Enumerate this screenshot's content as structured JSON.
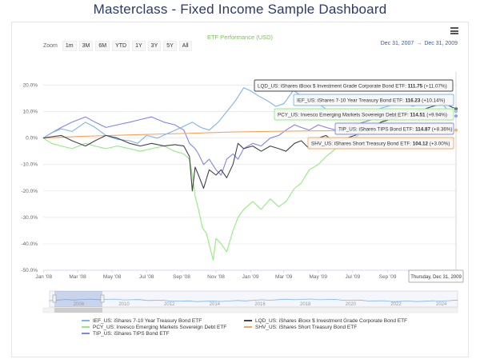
{
  "title": "Masterclass - Fixed Income Sample Dashboard",
  "zoom": {
    "label": "Zoom",
    "buttons": [
      "1m",
      "3M",
      "6M",
      "YTD",
      "1Y",
      "3Y",
      "5Y",
      "All"
    ]
  },
  "range": {
    "from": "Dec 31, 2007",
    "arrow": "→",
    "to": "Dec 31, 2009"
  },
  "chart_data": {
    "type": "line",
    "title": "ETF Performance (USD)",
    "x_tick_labels": [
      "Jan '08",
      "Mar '08",
      "May '08",
      "Jul '08",
      "Sep '08",
      "Nov '08",
      "Jan '09",
      "Mar '09",
      "May '09",
      "Jul '09",
      "Sep '09"
    ],
    "y_tick_labels": [
      "20.0%",
      "10.0%",
      "0.0%",
      "-10.0%",
      "-20.0%",
      "-30.0%",
      "-40.0%",
      "-50.0%"
    ],
    "ylim": [
      -50,
      25
    ],
    "xlim": [
      "2007-12-31",
      "2009-12-31"
    ],
    "grid": true,
    "legend_position": "bottom",
    "series": [
      {
        "name": "IEF_US: iShares 7-10 Year Treasury Bond ETF",
        "color": "#7cb5ec",
        "points": [
          [
            "2007-12-31",
            0
          ],
          [
            "2008-01-15",
            2
          ],
          [
            "2008-02-01",
            3.5
          ],
          [
            "2008-02-20",
            2.5
          ],
          [
            "2008-03-15",
            6
          ],
          [
            "2008-04-01",
            4
          ],
          [
            "2008-04-20",
            1
          ],
          [
            "2008-05-10",
            -0.5
          ],
          [
            "2008-06-01",
            -1
          ],
          [
            "2008-06-15",
            -2
          ],
          [
            "2008-07-01",
            1
          ],
          [
            "2008-07-20",
            0
          ],
          [
            "2008-08-10",
            2
          ],
          [
            "2008-09-01",
            4
          ],
          [
            "2008-09-20",
            6
          ],
          [
            "2008-10-05",
            4
          ],
          [
            "2008-10-20",
            3
          ],
          [
            "2008-11-05",
            6
          ],
          [
            "2008-11-20",
            10
          ],
          [
            "2008-12-05",
            14
          ],
          [
            "2008-12-20",
            19
          ],
          [
            "2008-12-31",
            18
          ],
          [
            "2009-01-15",
            16
          ],
          [
            "2009-02-01",
            14
          ],
          [
            "2009-02-15",
            12
          ],
          [
            "2009-03-01",
            13
          ],
          [
            "2009-03-18",
            18
          ],
          [
            "2009-04-01",
            16
          ],
          [
            "2009-04-15",
            14
          ],
          [
            "2009-05-01",
            13
          ],
          [
            "2009-05-15",
            11
          ],
          [
            "2009-06-01",
            8
          ],
          [
            "2009-06-15",
            9
          ],
          [
            "2009-07-01",
            10
          ],
          [
            "2009-07-15",
            8
          ],
          [
            "2009-08-01",
            9
          ],
          [
            "2009-08-15",
            11
          ],
          [
            "2009-09-01",
            12
          ],
          [
            "2009-09-15",
            13
          ],
          [
            "2009-10-01",
            14
          ],
          [
            "2009-10-15",
            12
          ],
          [
            "2009-11-01",
            13
          ],
          [
            "2009-11-15",
            14
          ],
          [
            "2009-12-01",
            14
          ],
          [
            "2009-12-15",
            11
          ],
          [
            "2009-12-31",
            10.14
          ]
        ]
      },
      {
        "name": "LQD_US: iShares iBoxx $ Investment Grade Corporate Bond ETF",
        "color": "#434348",
        "points": [
          [
            "2007-12-31",
            0
          ],
          [
            "2008-01-15",
            0.5
          ],
          [
            "2008-02-01",
            1
          ],
          [
            "2008-02-20",
            -1
          ],
          [
            "2008-03-15",
            -3
          ],
          [
            "2008-04-01",
            -1
          ],
          [
            "2008-04-20",
            1
          ],
          [
            "2008-05-10",
            0
          ],
          [
            "2008-06-01",
            -2
          ],
          [
            "2008-06-20",
            -3
          ],
          [
            "2008-07-10",
            -2
          ],
          [
            "2008-08-01",
            -3
          ],
          [
            "2008-08-20",
            -2.5
          ],
          [
            "2008-09-05",
            -3
          ],
          [
            "2008-09-15",
            -7
          ],
          [
            "2008-09-20",
            -20
          ],
          [
            "2008-09-25",
            -11
          ],
          [
            "2008-10-01",
            -14
          ],
          [
            "2008-10-10",
            -19
          ],
          [
            "2008-10-20",
            -12
          ],
          [
            "2008-11-01",
            -14
          ],
          [
            "2008-11-10",
            -12
          ],
          [
            "2008-11-20",
            -15
          ],
          [
            "2008-12-01",
            -10
          ],
          [
            "2008-12-10",
            -2
          ],
          [
            "2008-12-20",
            -4
          ],
          [
            "2009-01-05",
            -3
          ],
          [
            "2009-01-20",
            -5
          ],
          [
            "2009-02-05",
            -3
          ],
          [
            "2009-02-20",
            -4
          ],
          [
            "2009-03-05",
            -5
          ],
          [
            "2009-03-20",
            -2
          ],
          [
            "2009-04-01",
            -1
          ],
          [
            "2009-04-15",
            -4
          ],
          [
            "2009-05-01",
            0
          ],
          [
            "2009-05-15",
            1
          ],
          [
            "2009-06-01",
            -2
          ],
          [
            "2009-06-20",
            0
          ],
          [
            "2009-07-05",
            1
          ],
          [
            "2009-07-20",
            3
          ],
          [
            "2009-08-05",
            4
          ],
          [
            "2009-08-20",
            6
          ],
          [
            "2009-09-05",
            7
          ],
          [
            "2009-09-20",
            8
          ],
          [
            "2009-10-05",
            9
          ],
          [
            "2009-10-20",
            10
          ],
          [
            "2009-11-05",
            11
          ],
          [
            "2009-11-20",
            12
          ],
          [
            "2009-12-10",
            13
          ],
          [
            "2009-12-31",
            11.07
          ]
        ]
      },
      {
        "name": "PCY_US: Invesco Emerging Markets Sovereign Debt ETF",
        "color": "#90ed7d",
        "points": [
          [
            "2007-12-31",
            0
          ],
          [
            "2008-01-15",
            -2
          ],
          [
            "2008-02-01",
            -3
          ],
          [
            "2008-02-20",
            -4
          ],
          [
            "2008-03-15",
            -2
          ],
          [
            "2008-04-01",
            -3
          ],
          [
            "2008-04-20",
            -4
          ],
          [
            "2008-05-10",
            -3
          ],
          [
            "2008-06-01",
            -4
          ],
          [
            "2008-06-20",
            -5
          ],
          [
            "2008-07-10",
            -4
          ],
          [
            "2008-08-01",
            -3
          ],
          [
            "2008-08-20",
            -5
          ],
          [
            "2008-09-05",
            -6
          ],
          [
            "2008-09-15",
            -8
          ],
          [
            "2008-09-20",
            -14
          ],
          [
            "2008-09-25",
            -22
          ],
          [
            "2008-10-01",
            -27
          ],
          [
            "2008-10-08",
            -34
          ],
          [
            "2008-10-15",
            -36
          ],
          [
            "2008-10-22",
            -42
          ],
          [
            "2008-10-27",
            -46
          ],
          [
            "2008-11-01",
            -38
          ],
          [
            "2008-11-10",
            -40
          ],
          [
            "2008-11-20",
            -43
          ],
          [
            "2008-12-01",
            -35
          ],
          [
            "2008-12-10",
            -30
          ],
          [
            "2008-12-20",
            -27
          ],
          [
            "2009-01-05",
            -24
          ],
          [
            "2009-01-20",
            -27
          ],
          [
            "2009-02-05",
            -23
          ],
          [
            "2009-02-20",
            -26
          ],
          [
            "2009-03-05",
            -24
          ],
          [
            "2009-03-20",
            -19
          ],
          [
            "2009-04-01",
            -17
          ],
          [
            "2009-04-15",
            -12
          ],
          [
            "2009-05-01",
            -10
          ],
          [
            "2009-05-15",
            -7
          ],
          [
            "2009-06-01",
            -4
          ],
          [
            "2009-06-20",
            -3
          ],
          [
            "2009-07-05",
            0
          ],
          [
            "2009-07-20",
            3
          ],
          [
            "2009-08-05",
            5
          ],
          [
            "2009-08-20",
            6
          ],
          [
            "2009-09-05",
            8
          ],
          [
            "2009-09-20",
            9
          ],
          [
            "2009-10-05",
            10
          ],
          [
            "2009-10-20",
            9
          ],
          [
            "2009-11-05",
            11
          ],
          [
            "2009-11-20",
            10
          ],
          [
            "2009-12-10",
            11
          ],
          [
            "2009-12-31",
            9.94
          ]
        ]
      },
      {
        "name": "SHV_US: iShares Short Treasury Bond ETF",
        "color": "#f7a35c",
        "points": [
          [
            "2007-12-31",
            0
          ],
          [
            "2008-03-01",
            0.6
          ],
          [
            "2008-06-01",
            1.2
          ],
          [
            "2008-09-01",
            1.7
          ],
          [
            "2008-12-01",
            2.3
          ],
          [
            "2009-03-01",
            2.6
          ],
          [
            "2009-06-01",
            2.8
          ],
          [
            "2009-09-01",
            2.9
          ],
          [
            "2009-12-31",
            3.0
          ]
        ]
      },
      {
        "name": "TIP_US: iShares TIPS Bond ETF",
        "color": "#8085e9",
        "points": [
          [
            "2007-12-31",
            0
          ],
          [
            "2008-01-15",
            2
          ],
          [
            "2008-02-01",
            4
          ],
          [
            "2008-02-20",
            6
          ],
          [
            "2008-03-15",
            8
          ],
          [
            "2008-04-01",
            6
          ],
          [
            "2008-04-20",
            4
          ],
          [
            "2008-05-10",
            5
          ],
          [
            "2008-06-01",
            6
          ],
          [
            "2008-06-20",
            7
          ],
          [
            "2008-07-10",
            8
          ],
          [
            "2008-08-01",
            6
          ],
          [
            "2008-08-20",
            5
          ],
          [
            "2008-09-05",
            3
          ],
          [
            "2008-09-15",
            -2
          ],
          [
            "2008-09-25",
            -4
          ],
          [
            "2008-10-01",
            -6
          ],
          [
            "2008-10-10",
            -10
          ],
          [
            "2008-10-20",
            -8
          ],
          [
            "2008-11-01",
            -12
          ],
          [
            "2008-11-10",
            -14
          ],
          [
            "2008-11-20",
            -8
          ],
          [
            "2008-12-01",
            -6
          ],
          [
            "2008-12-10",
            -8
          ],
          [
            "2008-12-20",
            -4
          ],
          [
            "2009-01-05",
            -2
          ],
          [
            "2009-01-20",
            -3
          ],
          [
            "2009-02-05",
            0
          ],
          [
            "2009-02-20",
            1
          ],
          [
            "2009-03-05",
            3
          ],
          [
            "2009-03-20",
            5
          ],
          [
            "2009-04-01",
            4
          ],
          [
            "2009-04-15",
            3
          ],
          [
            "2009-05-01",
            5
          ],
          [
            "2009-05-15",
            4
          ],
          [
            "2009-06-01",
            3
          ],
          [
            "2009-06-20",
            4
          ],
          [
            "2009-07-05",
            5
          ],
          [
            "2009-07-20",
            6
          ],
          [
            "2009-08-05",
            7
          ],
          [
            "2009-08-20",
            7
          ],
          [
            "2009-09-05",
            8
          ],
          [
            "2009-09-20",
            8
          ],
          [
            "2009-10-05",
            9
          ],
          [
            "2009-10-20",
            9
          ],
          [
            "2009-11-05",
            10
          ],
          [
            "2009-11-20",
            9
          ],
          [
            "2009-12-10",
            9
          ],
          [
            "2009-12-31",
            8.36
          ]
        ]
      }
    ],
    "tooltips": [
      {
        "label": "LQD_US: iShares iBoxx $ Investment Grade Corporate Bond ETF:",
        "value": "111.75",
        "change": "(+11.07%)",
        "color": "#434348"
      },
      {
        "label": "IEF_US: iShares 7-10 Year Treasury Bond ETF:",
        "value": "116.23",
        "change": "(+10.14%)",
        "color": "#7cb5ec"
      },
      {
        "label": "PCY_US: Invesco Emerging Markets Sovereign Debt ETF:",
        "value": "114.51",
        "change": "(+9.94%)",
        "color": "#90ed7d"
      },
      {
        "label": "TIP_US: iShares TIPS Bond ETF:",
        "value": "114.87",
        "change": "(+8.36%)",
        "color": "#8085e9"
      },
      {
        "label": "SHV_US: iShares Short Treasury Bond ETF:",
        "value": "104.12",
        "change": "(+3.00%)",
        "color": "#f7a35c"
      }
    ],
    "crosshair_label": "Thursday, Dec 31, 2009",
    "navigator": {
      "year_labels": [
        "2008",
        "2010",
        "2012",
        "2014",
        "2016",
        "2018",
        "2020",
        "2022",
        "2024"
      ]
    }
  },
  "legend": [
    {
      "name": "IEF_US: iShares 7-10 Year Treasury Bond ETF",
      "color": "#7cb5ec"
    },
    {
      "name": "PCY_US: Invesco Emerging Markets Sovereign Debt ETF",
      "color": "#90ed7d"
    },
    {
      "name": "TIP_US: iShares TIPS Bond ETF",
      "color": "#8085e9"
    },
    {
      "name": "LQD_US: iShares iBoxx $ Investment Grade Corporate Bond ETF",
      "color": "#434348"
    },
    {
      "name": "SHV_US: iShares Short Treasury Bond ETF",
      "color": "#f7a35c"
    }
  ]
}
